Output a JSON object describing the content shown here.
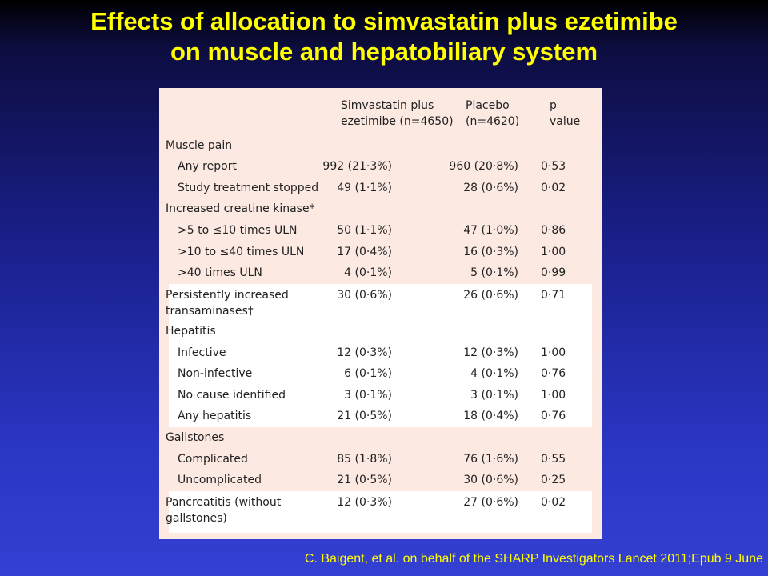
{
  "title": {
    "line1": "Effects of allocation to simvastatin plus ezetimibe",
    "line2": "on muscle and hepatobiliary system"
  },
  "table": {
    "headers": {
      "simva_line1": "Simvastatin plus",
      "simva_line2": "ezetimibe (n=4650)",
      "placebo_line1": "Placebo",
      "placebo_line2": "(n=4620)",
      "p_line1": "p",
      "p_line2": "value"
    },
    "rows": [
      {
        "label": "Muscle pain",
        "simva": "",
        "placebo": "",
        "p": ""
      },
      {
        "label": "Any report",
        "simva": "992 (21·3%)",
        "placebo": "960 (20·8%)",
        "p": "0·53"
      },
      {
        "label": "Study treatment stopped",
        "simva": "49 (1·1%)",
        "placebo": "28 (0·6%)",
        "p": "0·02"
      },
      {
        "label": "Increased creatine kinase*",
        "simva": "",
        "placebo": "",
        "p": ""
      },
      {
        "label": ">5 to ≤10 times ULN",
        "simva": "50 (1·1%)",
        "placebo": "47 (1·0%)",
        "p": "0·86"
      },
      {
        "label": ">10 to ≤40 times ULN",
        "simva": "17 (0·4%)",
        "placebo": "16 (0·3%)",
        "p": "1·00"
      },
      {
        "label": ">40 times ULN",
        "simva": "4 (0·1%)",
        "placebo": "5 (0·1%)",
        "p": "0·99"
      },
      {
        "label_line1": "Persistently increased",
        "label_line2": "transaminases†",
        "simva": "30 (0·6%)",
        "placebo": "26 (0·6%)",
        "p": "0·71"
      },
      {
        "label": "Hepatitis",
        "simva": "",
        "placebo": "",
        "p": ""
      },
      {
        "label": "Infective",
        "simva": "12 (0·3%)",
        "placebo": "12 (0·3%)",
        "p": "1·00"
      },
      {
        "label": "Non-infective",
        "simva": "6 (0·1%)",
        "placebo": "4 (0·1%)",
        "p": "0·76"
      },
      {
        "label": "No cause identified",
        "simva": "3 (0·1%)",
        "placebo": "3 (0·1%)",
        "p": "1·00"
      },
      {
        "label": "Any hepatitis",
        "simva": "21 (0·5%)",
        "placebo": "18 (0·4%)",
        "p": "0·76"
      },
      {
        "label": "Gallstones",
        "simva": "",
        "placebo": "",
        "p": ""
      },
      {
        "label": "Complicated",
        "simva": "85 (1·8%)",
        "placebo": "76 (1·6%)",
        "p": "0·55"
      },
      {
        "label": "Uncomplicated",
        "simva": "21 (0·5%)",
        "placebo": "30 (0·6%)",
        "p": "0·25"
      },
      {
        "label_line1": "Pancreatitis (without",
        "label_line2": "gallstones)",
        "simva": "12 (0·3%)",
        "placebo": "27 (0·6%)",
        "p": "0·02"
      }
    ]
  },
  "citation": "C. Baigent, et al. on behalf of the SHARP Investigators Lancet 2011;Epub 9 June",
  "colors": {
    "title": "#ffff00",
    "panel_pink": "#fce9e2",
    "panel_white": "#ffffff"
  }
}
